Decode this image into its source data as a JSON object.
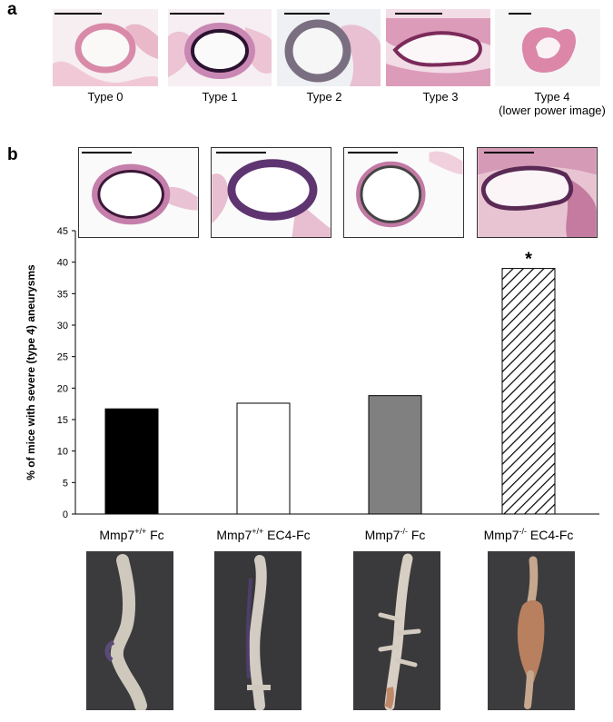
{
  "panel_a": {
    "letter": "a",
    "types": [
      "Type 0",
      "Type 1",
      "Type 2",
      "Type 3",
      "Type 4"
    ],
    "type4_note": "(lower power image)"
  },
  "panel_b": {
    "letter": "b"
  },
  "chart_data": {
    "type": "bar",
    "categories": [
      "Mmp7+/+ Fc",
      "Mmp7+/+ EC4-Fc",
      "Mmp7-/-  Fc",
      "Mmp7-/-  EC4-Fc"
    ],
    "category_parts": [
      {
        "base": "Mmp7",
        "sup": "+/+",
        "rest": " Fc"
      },
      {
        "base": "Mmp7",
        "sup": "+/+",
        "rest": " EC4-Fc"
      },
      {
        "base": "Mmp7",
        "sup": "-/-",
        "rest": "  Fc"
      },
      {
        "base": "Mmp7",
        "sup": "-/-",
        "rest": "  EC4-Fc"
      }
    ],
    "values": [
      16.7,
      17.6,
      18.8,
      39.0
    ],
    "bar_styles": [
      "solid-black",
      "white",
      "solid-gray",
      "diagonal-hatch"
    ],
    "ylabel": "% of mice with severe (type 4) aneurysms",
    "ylim": [
      0,
      45
    ],
    "yticks": [
      0,
      5,
      10,
      15,
      20,
      25,
      30,
      35,
      40,
      45
    ],
    "annotations": [
      {
        "category_index": 3,
        "text": "*"
      }
    ],
    "grid": false,
    "legend": "none"
  },
  "colors": {
    "tissue_pink": "#e7a6c0",
    "tissue_dark": "#5a2a55",
    "bar_gray": "#808080",
    "photo_bg": "#3a3a3a"
  }
}
